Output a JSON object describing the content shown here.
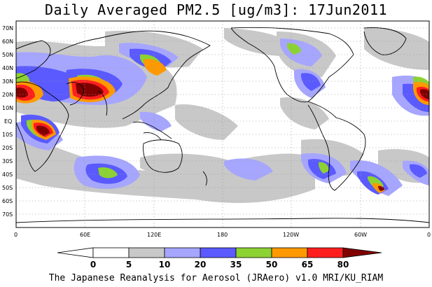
{
  "title": "Daily Averaged PM2.5 [ug/m3]: 17Jun2011",
  "map": {
    "lat_labels": [
      "70N",
      "60N",
      "50N",
      "40N",
      "30N",
      "20N",
      "10N",
      "EQ",
      "10S",
      "20S",
      "30S",
      "40S",
      "50S",
      "60S",
      "70S"
    ],
    "lon_labels": [
      "0",
      "60E",
      "120E",
      "180",
      "120W",
      "60W",
      "0"
    ]
  },
  "colorbar": {
    "ticks": [
      "0",
      "5",
      "10",
      "20",
      "35",
      "50",
      "65",
      "80"
    ],
    "colors": [
      "#ffffff",
      "#c8c8c8",
      "#a6a6ff",
      "#5a5aff",
      "#8cd233",
      "#ff9900",
      "#ff1e1e",
      "#800000"
    ]
  },
  "credit": "The Japanese Reanalysis for Aerosol (JRAero) v1.0 MRI/KU_RIAM"
}
